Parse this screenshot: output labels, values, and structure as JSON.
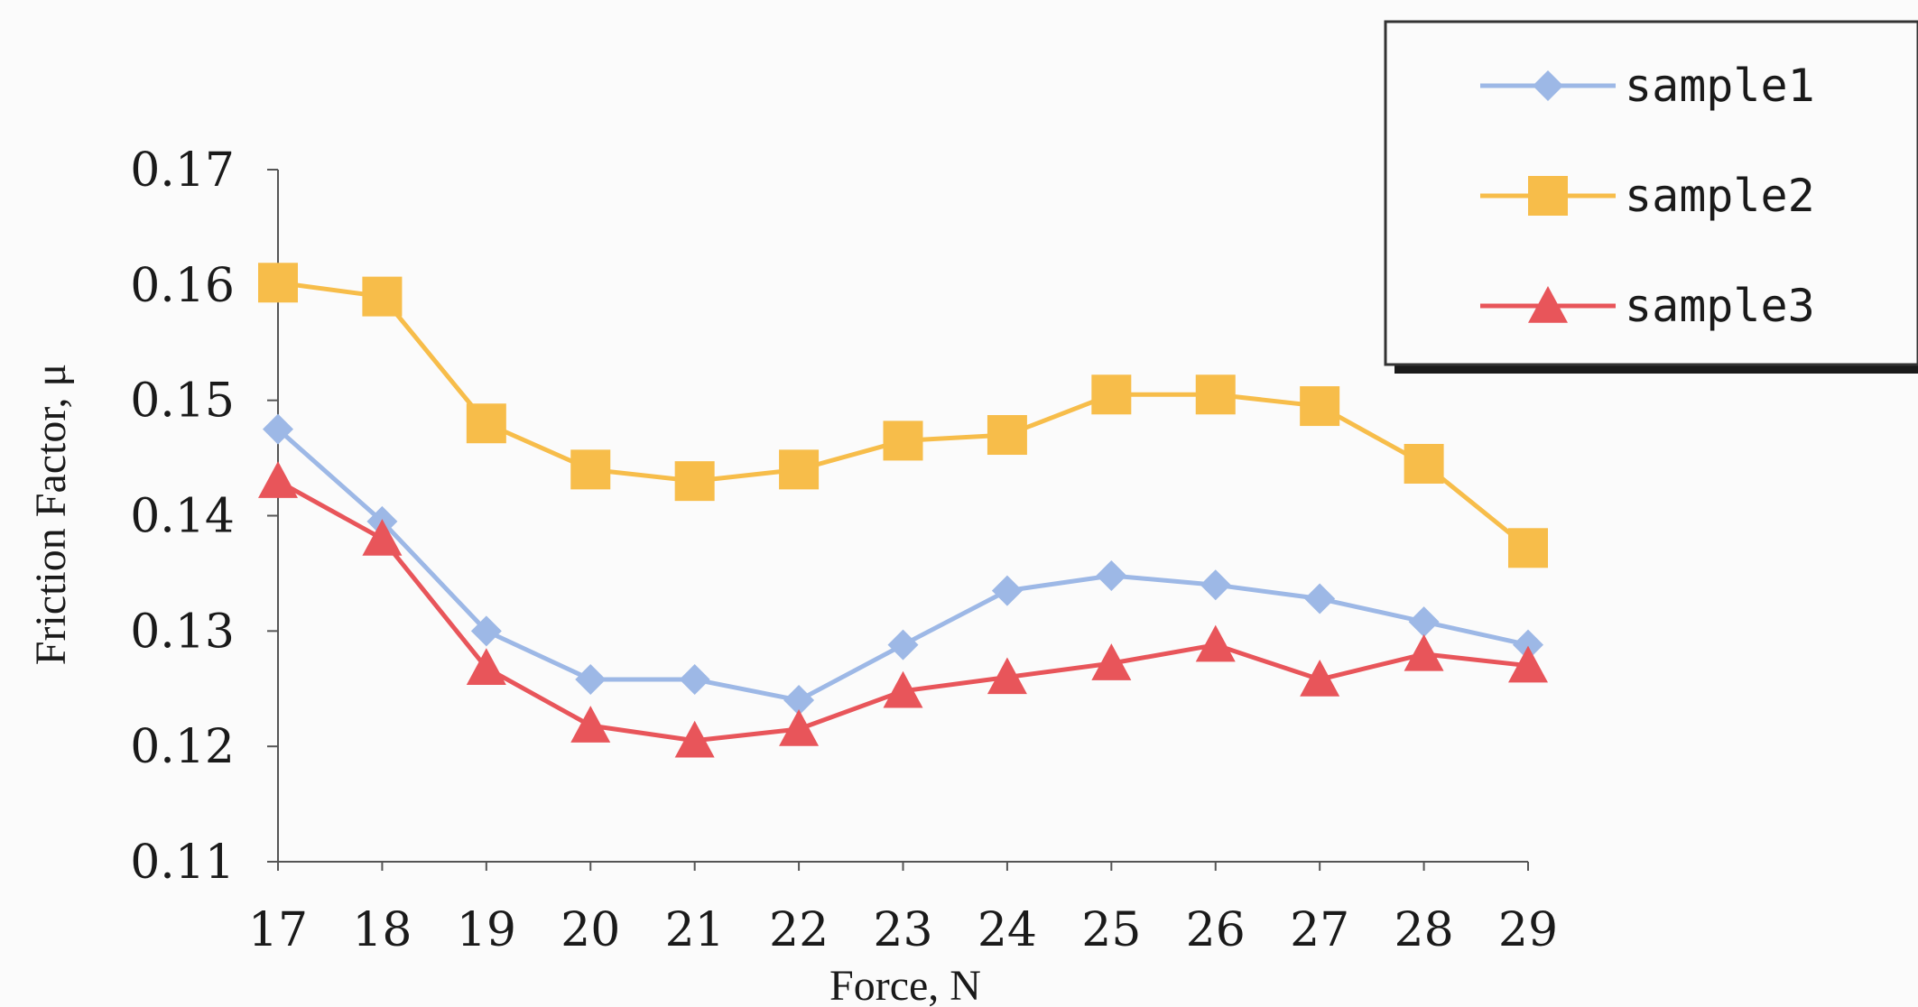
{
  "chart_data": {
    "type": "line",
    "xlabel": "Force, N",
    "ylabel": "Friction Factor, μ",
    "x": [
      17,
      18,
      19,
      20,
      21,
      22,
      23,
      24,
      25,
      26,
      27,
      28,
      29
    ],
    "ylim": [
      0.11,
      0.17
    ],
    "yticks": [
      "0.11",
      "0.12",
      "0.13",
      "0.14",
      "0.15",
      "0.16",
      "0.17"
    ],
    "grid": false,
    "legend_position": "top-right",
    "series": [
      {
        "name": "sample1",
        "marker": "diamond",
        "color": "#9db8e6",
        "values": [
          0.1475,
          0.1395,
          0.13,
          0.1258,
          0.1258,
          0.124,
          0.1288,
          0.1335,
          0.1348,
          0.134,
          0.1328,
          0.1308,
          0.1288
        ]
      },
      {
        "name": "sample2",
        "marker": "square",
        "color": "#f7bd4a",
        "values": [
          0.1602,
          0.159,
          0.148,
          0.144,
          0.143,
          0.144,
          0.1465,
          0.147,
          0.1505,
          0.1505,
          0.1495,
          0.1445,
          0.1372
        ]
      },
      {
        "name": "sample3",
        "marker": "triangle",
        "color": "#e8555a",
        "values": [
          0.143,
          0.138,
          0.1268,
          0.1218,
          0.1205,
          0.1215,
          0.1248,
          0.126,
          0.1272,
          0.1288,
          0.1258,
          0.128,
          0.127
        ]
      }
    ]
  }
}
